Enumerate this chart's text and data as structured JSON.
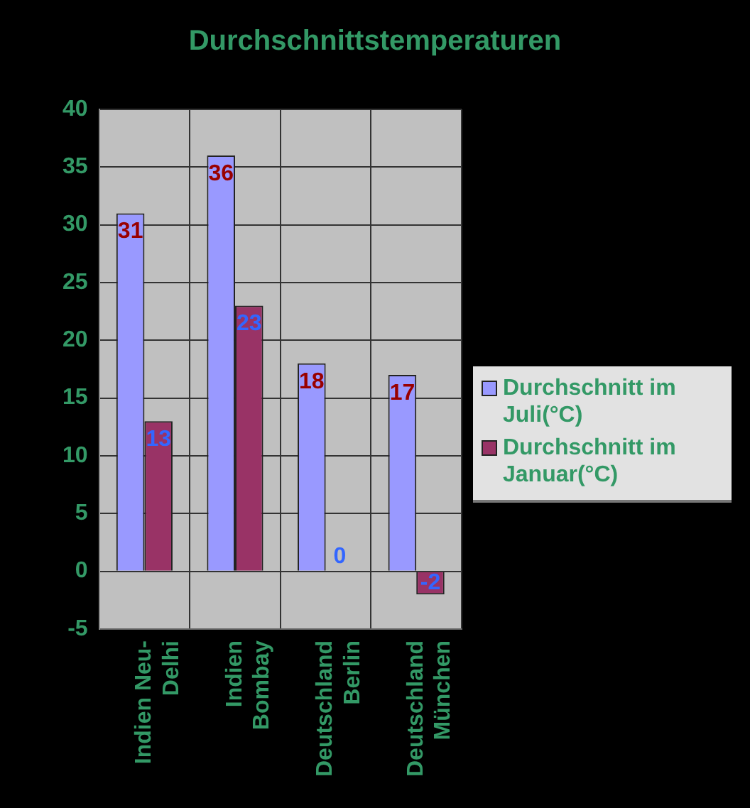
{
  "chart_data": {
    "type": "bar",
    "title": "Durchschnittstemperaturen",
    "categories": [
      "Indien Neu-Delhi",
      "Indien Bombay",
      "Deutschland Berlin",
      "Deutschland München"
    ],
    "series": [
      {
        "name": "Durchschnitt im Juli(°C)",
        "color": "#9999ff",
        "values": [
          31,
          36,
          18,
          17
        ]
      },
      {
        "name": "Durchschnitt im Januar(°C)",
        "color": "#993366",
        "values": [
          13,
          23,
          0,
          -2
        ]
      }
    ],
    "ylim": [
      -5,
      40
    ],
    "yticks": [
      -5,
      0,
      5,
      10,
      15,
      20,
      25,
      30,
      35,
      40
    ],
    "grid": true,
    "legend": "right",
    "data_labels": true
  }
}
